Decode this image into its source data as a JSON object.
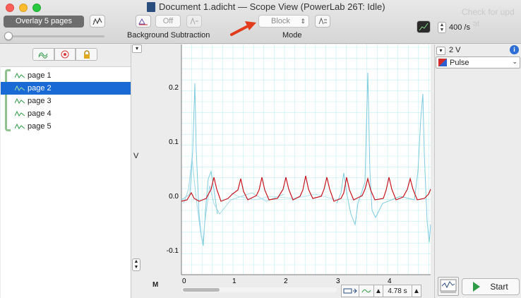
{
  "window": {
    "title": "Document 1.adicht — Scope View (PowerLab 26T: Idle)",
    "ghost_line1": "Check for upd",
    "ghost_line2": "at"
  },
  "toolbar": {
    "overlay_label": "Overlay 5 pages",
    "bg_sub_state": "Off",
    "bg_sub_label": "Background Subtraction",
    "mode_value": "Block",
    "mode_label": "Mode",
    "sample_rate": "400 /s"
  },
  "sidebar": {
    "pages": [
      {
        "label": "page 1",
        "selected": false
      },
      {
        "label": "page 2",
        "selected": true
      },
      {
        "label": "page 3",
        "selected": false
      },
      {
        "label": "page 4",
        "selected": false
      },
      {
        "label": "page 5",
        "selected": false
      }
    ]
  },
  "plot": {
    "y_unit": "V",
    "y_ticks": [
      "0.2",
      "0.1",
      "0.0",
      "-0.1"
    ],
    "x_ticks": [
      "0",
      "1",
      "2",
      "3",
      "4"
    ],
    "time_window": "4.78 s",
    "marker_icon": "M"
  },
  "channel": {
    "range": "2 V",
    "name": "Pulse"
  },
  "controls": {
    "start_label": "Start"
  },
  "colors": {
    "grid": "#8ee3ea",
    "overlay_trace": "#7ecbe0",
    "active_trace": "#c8141e",
    "selection": "#1a6ad6",
    "start_green": "#2e9b46"
  }
}
